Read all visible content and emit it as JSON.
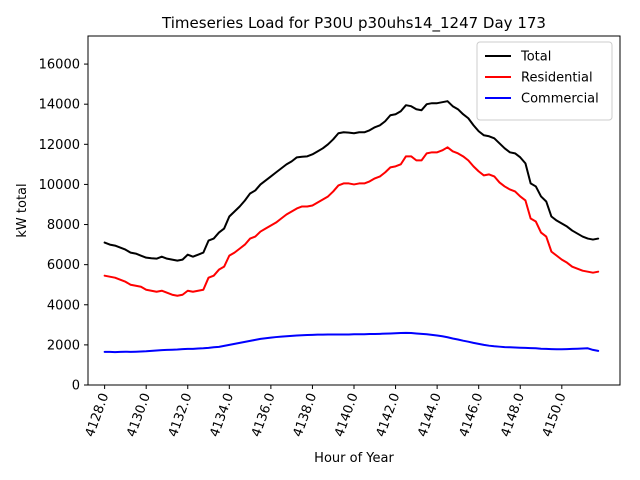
{
  "chart_data": {
    "type": "line",
    "title": "Timeseries Load for P30U p30uhs14_1247  Day 173",
    "xlabel": "Hour of Year",
    "ylabel": "kW total",
    "xlim": [
      4127.2,
      4152.8
    ],
    "ylim": [
      0,
      17400
    ],
    "x_ticks": [
      4128.0,
      4130.0,
      4132.0,
      4134.0,
      4136.0,
      4138.0,
      4140.0,
      4142.0,
      4144.0,
      4146.0,
      4148.0,
      4150.0
    ],
    "x_tick_labels": [
      "4128.0",
      "4130.0",
      "4132.0",
      "4134.0",
      "4136.0",
      "4138.0",
      "4140.0",
      "4142.0",
      "4144.0",
      "4146.0",
      "4148.0",
      "4150.0"
    ],
    "y_ticks": [
      0,
      2000,
      4000,
      6000,
      8000,
      10000,
      12000,
      14000,
      16000
    ],
    "y_tick_labels": [
      "0",
      "2000",
      "4000",
      "6000",
      "8000",
      "10000",
      "12000",
      "14000",
      "16000"
    ],
    "legend_position": "top-right",
    "x": [
      4128.0,
      4128.25,
      4128.5,
      4128.75,
      4129.0,
      4129.25,
      4129.5,
      4129.75,
      4130.0,
      4130.25,
      4130.5,
      4130.75,
      4131.0,
      4131.25,
      4131.5,
      4131.75,
      4132.0,
      4132.25,
      4132.5,
      4132.75,
      4133.0,
      4133.25,
      4133.5,
      4133.75,
      4134.0,
      4134.25,
      4134.5,
      4134.75,
      4135.0,
      4135.25,
      4135.5,
      4135.75,
      4136.0,
      4136.25,
      4136.5,
      4136.75,
      4137.0,
      4137.25,
      4137.5,
      4137.75,
      4138.0,
      4138.25,
      4138.5,
      4138.75,
      4139.0,
      4139.25,
      4139.5,
      4139.75,
      4140.0,
      4140.25,
      4140.5,
      4140.75,
      4141.0,
      4141.25,
      4141.5,
      4141.75,
      4142.0,
      4142.25,
      4142.5,
      4142.75,
      4143.0,
      4143.25,
      4143.5,
      4143.75,
      4144.0,
      4144.25,
      4144.5,
      4144.75,
      4145.0,
      4145.25,
      4145.5,
      4145.75,
      4146.0,
      4146.25,
      4146.5,
      4146.75,
      4147.0,
      4147.25,
      4147.5,
      4147.75,
      4148.0,
      4148.25,
      4148.5,
      4148.75,
      4149.0,
      4149.25,
      4149.5,
      4149.75,
      4150.0,
      4150.25,
      4150.5,
      4150.75,
      4151.0,
      4151.25,
      4151.5,
      4151.75
    ],
    "series": [
      {
        "name": "Total",
        "color": "#000000",
        "values": [
          7100,
          7000,
          6950,
          6850,
          6750,
          6600,
          6550,
          6450,
          6350,
          6320,
          6300,
          6400,
          6300,
          6250,
          6200,
          6250,
          6500,
          6400,
          6500,
          6600,
          7200,
          7300,
          7600,
          7800,
          8400,
          8650,
          8900,
          9200,
          9550,
          9700,
          10000,
          10200,
          10400,
          10600,
          10800,
          11000,
          11150,
          11350,
          11380,
          11400,
          11500,
          11650,
          11800,
          12000,
          12250,
          12550,
          12600,
          12580,
          12550,
          12600,
          12600,
          12700,
          12850,
          12950,
          13150,
          13450,
          13500,
          13650,
          13950,
          13900,
          13750,
          13700,
          14000,
          14050,
          14050,
          14100,
          14150,
          13900,
          13750,
          13500,
          13300,
          12950,
          12650,
          12450,
          12400,
          12300,
          12050,
          11800,
          11600,
          11550,
          11350,
          11050,
          10050,
          9900,
          9400,
          9150,
          8400,
          8200,
          8050,
          7900,
          7700,
          7550,
          7400,
          7300,
          7250,
          7300
        ]
      },
      {
        "name": "Residential",
        "color": "#ff0000",
        "values": [
          5450,
          5400,
          5350,
          5250,
          5150,
          5000,
          4950,
          4900,
          4750,
          4700,
          4650,
          4700,
          4600,
          4500,
          4450,
          4500,
          4700,
          4650,
          4700,
          4750,
          5350,
          5450,
          5750,
          5900,
          6450,
          6600,
          6800,
          7000,
          7300,
          7400,
          7650,
          7800,
          7950,
          8100,
          8300,
          8500,
          8650,
          8800,
          8900,
          8900,
          8950,
          9100,
          9250,
          9400,
          9650,
          9950,
          10050,
          10050,
          10000,
          10050,
          10050,
          10150,
          10300,
          10400,
          10600,
          10850,
          10900,
          11000,
          11400,
          11400,
          11200,
          11200,
          11550,
          11600,
          11600,
          11700,
          11850,
          11650,
          11550,
          11400,
          11200,
          10900,
          10650,
          10450,
          10500,
          10400,
          10100,
          9900,
          9750,
          9650,
          9400,
          9200,
          8300,
          8150,
          7600,
          7400,
          6650,
          6450,
          6250,
          6100,
          5900,
          5800,
          5700,
          5650,
          5600,
          5650
        ]
      },
      {
        "name": "Commercial",
        "color": "#0000ff",
        "values": [
          1650,
          1650,
          1640,
          1650,
          1660,
          1650,
          1660,
          1670,
          1680,
          1700,
          1720,
          1740,
          1750,
          1760,
          1770,
          1790,
          1800,
          1800,
          1820,
          1830,
          1850,
          1880,
          1900,
          1950,
          2000,
          2050,
          2100,
          2150,
          2200,
          2250,
          2300,
          2330,
          2360,
          2390,
          2410,
          2430,
          2450,
          2470,
          2480,
          2490,
          2500,
          2510,
          2510,
          2520,
          2520,
          2520,
          2520,
          2520,
          2530,
          2530,
          2530,
          2540,
          2540,
          2550,
          2560,
          2570,
          2580,
          2590,
          2600,
          2590,
          2570,
          2550,
          2530,
          2500,
          2470,
          2430,
          2380,
          2320,
          2270,
          2210,
          2160,
          2100,
          2050,
          2000,
          1960,
          1930,
          1910,
          1890,
          1880,
          1870,
          1860,
          1850,
          1840,
          1830,
          1810,
          1800,
          1790,
          1780,
          1780,
          1790,
          1800,
          1810,
          1820,
          1830,
          1750,
          1700
        ]
      }
    ]
  }
}
